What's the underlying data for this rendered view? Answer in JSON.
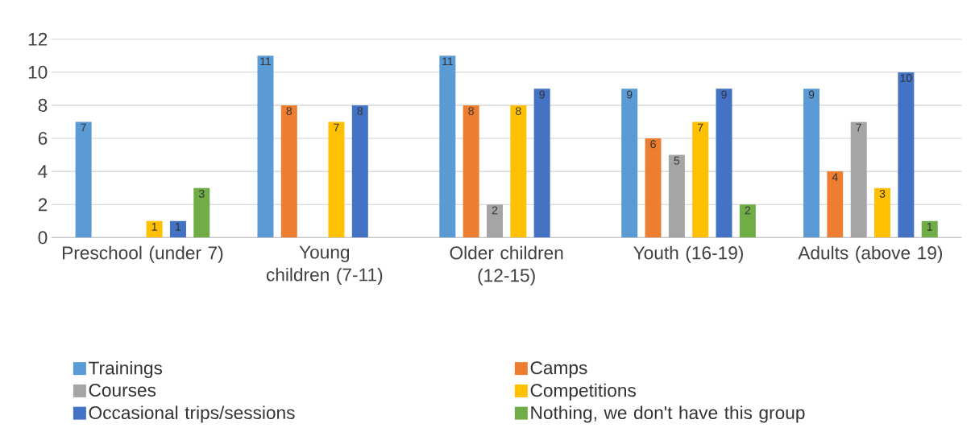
{
  "chart_data": {
    "type": "bar",
    "categories": [
      "Preschool (under 7)",
      "Young children (7-11)",
      "Older children (12-15)",
      "Youth (16-19)",
      "Adults (above 19)"
    ],
    "series": [
      {
        "name": "Trainings",
        "color": "#5b9bd5",
        "values": [
          7,
          11,
          11,
          9,
          9
        ]
      },
      {
        "name": "Camps",
        "color": "#ed7d31",
        "values": [
          null,
          8,
          8,
          6,
          4
        ]
      },
      {
        "name": "Courses",
        "color": "#a5a5a5",
        "values": [
          null,
          null,
          2,
          5,
          7
        ]
      },
      {
        "name": "Competitions",
        "color": "#ffc000",
        "values": [
          1,
          7,
          8,
          7,
          3
        ]
      },
      {
        "name": "Occasional trips/sessions",
        "color": "#4472c4",
        "values": [
          1,
          8,
          9,
          9,
          10
        ]
      },
      {
        "name": "Nothing, we don't have this group",
        "color": "#70ad47",
        "values": [
          3,
          null,
          null,
          2,
          1
        ]
      }
    ],
    "ylim": [
      0,
      12
    ],
    "yticks": [
      0,
      2,
      4,
      6,
      8,
      10,
      12
    ],
    "grid": "y",
    "legend": "bottom",
    "data_labels": true
  }
}
